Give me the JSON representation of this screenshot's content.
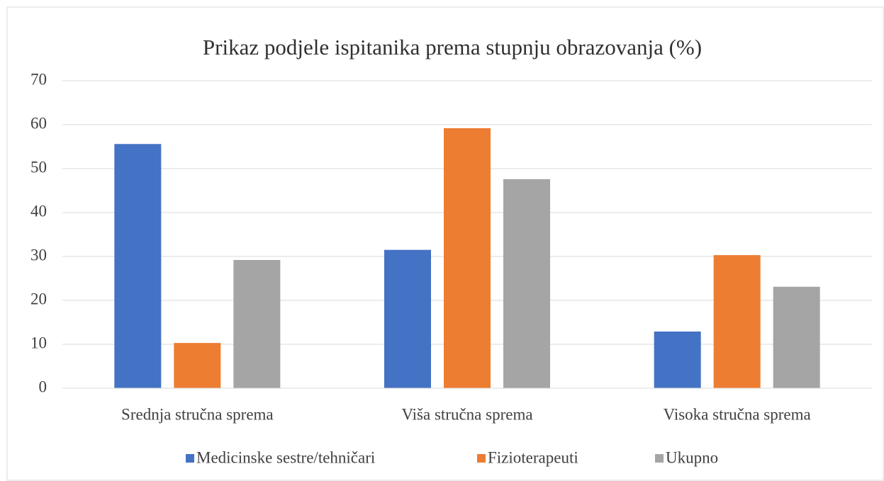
{
  "chart_data": {
    "type": "bar",
    "title": "Prikaz podjele ispitanika prema stupnju obrazovanja (%)",
    "categories": [
      "Srednja stručna sprema",
      "Viša stručna sprema",
      "Visoka stručna sprema"
    ],
    "series": [
      {
        "name": "Medicinske sestre/tehničari",
        "color": "#4472c4",
        "values": [
          55.6,
          31.5,
          12.9
        ]
      },
      {
        "name": "Fizioterapeuti",
        "color": "#ed7d31",
        "values": [
          10.3,
          59.2,
          30.3
        ]
      },
      {
        "name": "Ukupno",
        "color": "#a5a5a5",
        "values": [
          29.2,
          47.6,
          23.1
        ]
      }
    ],
    "ylim": [
      0,
      70
    ],
    "yticks": [
      0,
      10,
      20,
      30,
      40,
      50,
      60,
      70
    ],
    "grid": true,
    "legend": "bottom"
  }
}
